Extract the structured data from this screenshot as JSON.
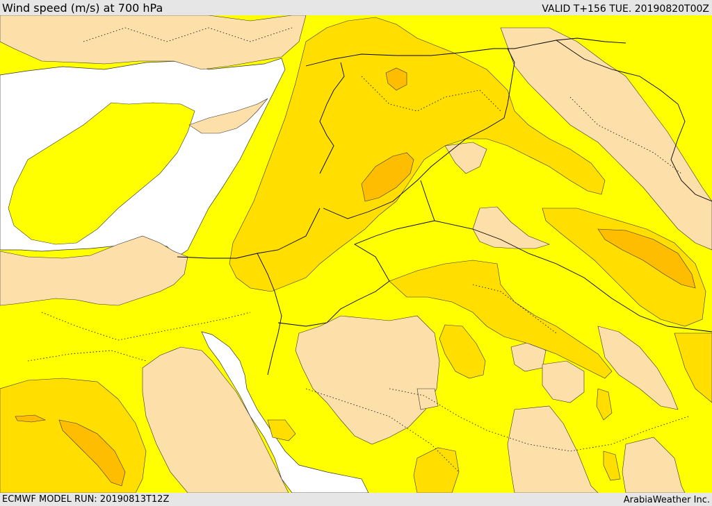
{
  "header": {
    "title": "Wind speed (m/s) at 700 hPa",
    "valid": "VALID T+156 TUE. 20190820T00Z"
  },
  "footer": {
    "model_run": "ECMWF MODEL RUN: 20190813T12Z",
    "credit": "ArabiaWeather Inc."
  },
  "colors": {
    "sea": "#ffffff",
    "band_low": "#fddfaa",
    "band_mid": "#ffff00",
    "band_high": "#ffde00",
    "band_higher": "#ffbd00",
    "bar_background": "#e6e6e6"
  }
}
